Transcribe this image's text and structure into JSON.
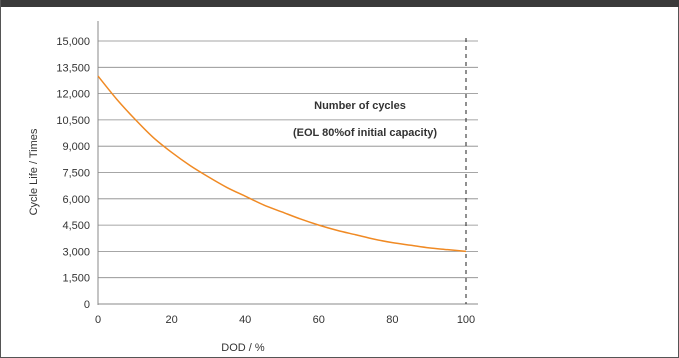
{
  "colors": {
    "curve": "#f08a24",
    "axis": "#888888",
    "text": "#333333",
    "frame_bar": "#3a3a3a",
    "reference_line": "#222222"
  },
  "chart_data": {
    "type": "line",
    "title": "",
    "xlabel": "DOD / %",
    "ylabel": "Cycle Life / Times",
    "xlim": [
      0,
      100
    ],
    "ylim": [
      0,
      15000
    ],
    "x_ticks": [
      "0",
      "20",
      "40",
      "60",
      "80",
      "100"
    ],
    "x_tick_values": [
      0,
      20,
      40,
      60,
      80,
      100
    ],
    "y_ticks": [
      "0",
      "1,500",
      "3,000",
      "4,500",
      "6,000",
      "7,500",
      "9,000",
      "10,500",
      "12,000",
      "13,500",
      "15,000"
    ],
    "y_tick_values": [
      0,
      1500,
      3000,
      4500,
      6000,
      7500,
      9000,
      10500,
      12000,
      13500,
      15000
    ],
    "grid": false,
    "series": [
      {
        "x": [
          0,
          5,
          10,
          15,
          20,
          25,
          30,
          35,
          40,
          45,
          50,
          55,
          60,
          65,
          70,
          75,
          80,
          85,
          90,
          95,
          100
        ],
        "y": [
          13000,
          11700,
          10550,
          9500,
          8650,
          7900,
          7250,
          6650,
          6150,
          5650,
          5250,
          4850,
          4500,
          4200,
          3950,
          3700,
          3500,
          3350,
          3200,
          3100,
          3000
        ]
      }
    ],
    "reference_line": {
      "x": 100
    },
    "annotations": [
      "Number of cycles",
      "(EOL 80%of initial capacity)"
    ]
  }
}
